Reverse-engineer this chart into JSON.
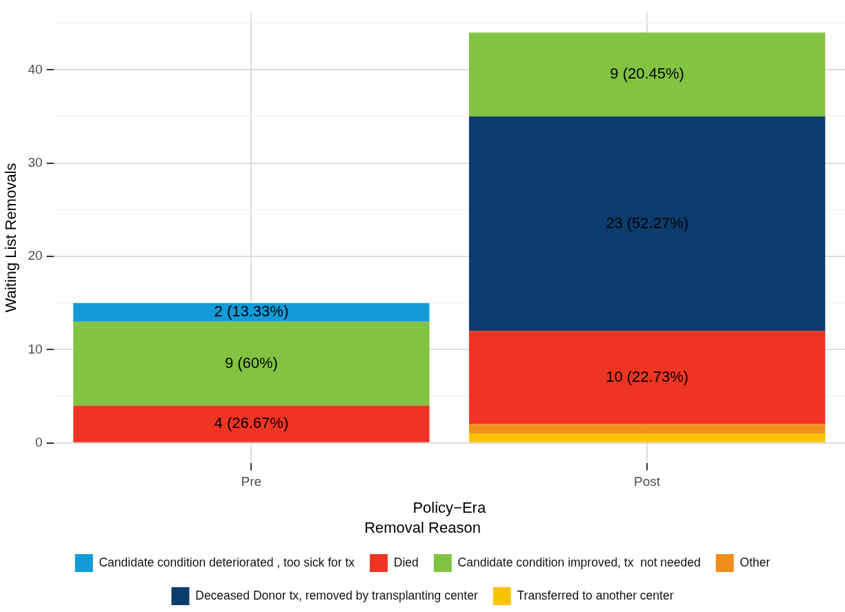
{
  "chart_data": {
    "type": "bar",
    "stacked": true,
    "xlabel": "Policy−Era",
    "ylabel": "Waiting List Removals",
    "legend_title": "Removal Reason",
    "legend": "bottom",
    "grid": true,
    "categories": [
      "Pre",
      "Post"
    ],
    "ylim": [
      -2.2,
      46.2
    ],
    "yticks": [
      0,
      {
        "value": 5,
        "label": null
      },
      10,
      {
        "value": 15,
        "label": null
      },
      20,
      {
        "value": 25,
        "label": null
      },
      30,
      {
        "value": 35,
        "label": null
      },
      40,
      {
        "value": 45,
        "label": null
      }
    ],
    "series": [
      {
        "name": "Transferred to another center",
        "color": "#f9c300",
        "values": [
          0,
          1
        ],
        "value_labels": [
          null,
          null
        ]
      },
      {
        "name": "Other",
        "color": "#f28e1c",
        "values": [
          0,
          1
        ],
        "value_labels": [
          null,
          null
        ]
      },
      {
        "name": "Died",
        "color": "#ee3524",
        "values": [
          4,
          10
        ],
        "value_labels": [
          "4 (26.67%)",
          "10 (22.73%)"
        ]
      },
      {
        "name": "Deceased Donor tx, removed by transplanting center",
        "color": "#0c3c6d",
        "values": [
          0,
          23
        ],
        "value_labels": [
          null,
          "23 (52.27%)"
        ]
      },
      {
        "name": "Candidate condition improved, tx  not needed",
        "color": "#82c341",
        "values": [
          9,
          9
        ],
        "value_labels": [
          "9 (60%)",
          "9 (20.45%)"
        ]
      },
      {
        "name": "Candidate condition deteriorated , too sick for tx",
        "color": "#129bd8",
        "values": [
          2,
          0
        ],
        "value_labels": [
          "2 (13.33%)",
          null
        ]
      }
    ]
  }
}
